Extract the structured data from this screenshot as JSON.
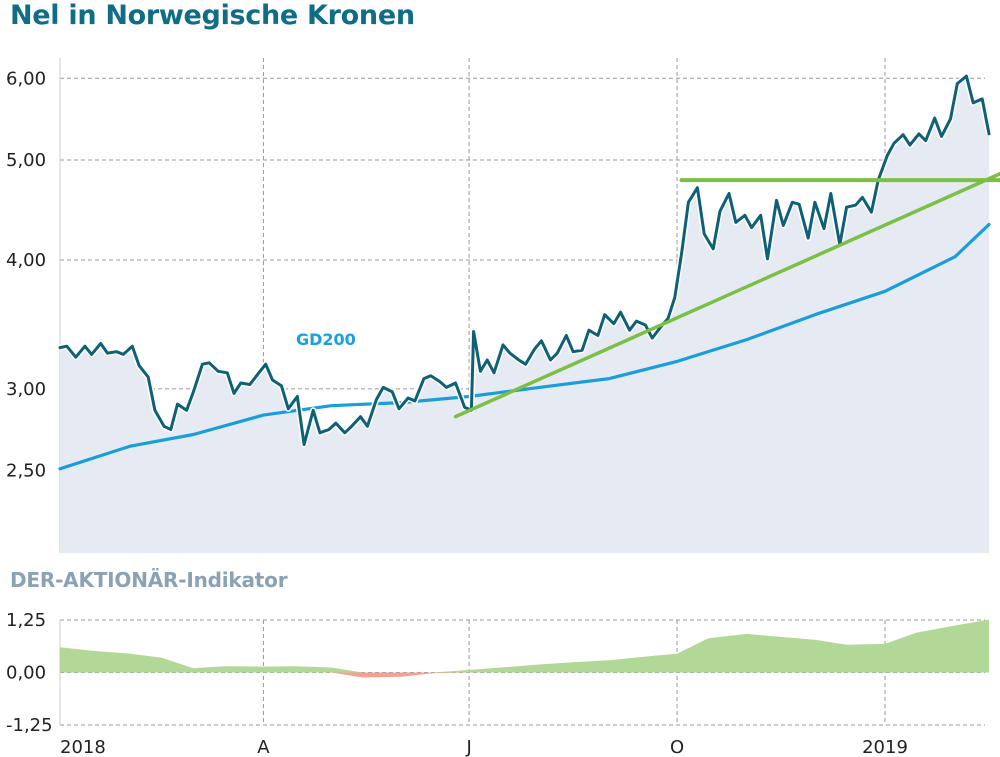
{
  "title": "Nel in Norwegische Kronen",
  "subtitle": "DER-AKTIONÄR-Indikator",
  "colors": {
    "title": "#0f6d86",
    "price_line": "#0e6077",
    "price_fill": "#e6ebf3",
    "gd200": "#1a9edb",
    "trend": "#7bbf45",
    "indicator_positive": "#b2d897",
    "indicator_negative": "#f3a095",
    "grid": "#999999"
  },
  "chart_data": [
    {
      "type": "line",
      "title": "Nel in Norwegische Kronen",
      "y_scale": "log",
      "ylim": [
        2.05,
        6.1
      ],
      "y_ticks": [
        {
          "value": 2.5,
          "label": "2,50"
        },
        {
          "value": 3.0,
          "label": "3,00"
        },
        {
          "value": 4.0,
          "label": "4,00"
        },
        {
          "value": 5.0,
          "label": "5,00"
        },
        {
          "value": 6.0,
          "label": "6,00"
        }
      ],
      "x_ticks": [
        {
          "date": "2018-01-01",
          "label": "2018"
        },
        {
          "date": "2018-04-01",
          "label": "A"
        },
        {
          "date": "2018-07-01",
          "label": "J"
        },
        {
          "date": "2018-10-01",
          "label": "O"
        },
        {
          "date": "2019-01-01",
          "label": "2019"
        }
      ],
      "grid": true,
      "series": [
        {
          "kind": "price",
          "points": [
            [
              "2018-01-01",
              3.29
            ],
            [
              "2018-01-04",
              3.3
            ],
            [
              "2018-01-08",
              3.22
            ],
            [
              "2018-01-12",
              3.3
            ],
            [
              "2018-01-15",
              3.24
            ],
            [
              "2018-01-19",
              3.32
            ],
            [
              "2018-01-22",
              3.25
            ],
            [
              "2018-01-26",
              3.26
            ],
            [
              "2018-01-29",
              3.24
            ],
            [
              "2018-02-02",
              3.3
            ],
            [
              "2018-02-05",
              3.16
            ],
            [
              "2018-02-09",
              3.08
            ],
            [
              "2018-02-12",
              2.86
            ],
            [
              "2018-02-16",
              2.76
            ],
            [
              "2018-02-19",
              2.74
            ],
            [
              "2018-02-22",
              2.9
            ],
            [
              "2018-02-26",
              2.86
            ],
            [
              "2018-03-01",
              2.98
            ],
            [
              "2018-03-05",
              3.17
            ],
            [
              "2018-03-08",
              3.18
            ],
            [
              "2018-03-12",
              3.12
            ],
            [
              "2018-03-16",
              3.11
            ],
            [
              "2018-03-19",
              2.97
            ],
            [
              "2018-03-22",
              3.04
            ],
            [
              "2018-03-26",
              3.03
            ],
            [
              "2018-03-29",
              3.09
            ],
            [
              "2018-04-02",
              3.17
            ],
            [
              "2018-04-05",
              3.06
            ],
            [
              "2018-04-09",
              3.02
            ],
            [
              "2018-04-12",
              2.87
            ],
            [
              "2018-04-16",
              2.95
            ],
            [
              "2018-04-19",
              2.65
            ],
            [
              "2018-04-23",
              2.86
            ],
            [
              "2018-04-26",
              2.72
            ],
            [
              "2018-04-30",
              2.74
            ],
            [
              "2018-05-03",
              2.78
            ],
            [
              "2018-05-07",
              2.72
            ],
            [
              "2018-05-10",
              2.76
            ],
            [
              "2018-05-14",
              2.82
            ],
            [
              "2018-05-17",
              2.76
            ],
            [
              "2018-05-21",
              2.93
            ],
            [
              "2018-05-24",
              3.01
            ],
            [
              "2018-05-28",
              2.98
            ],
            [
              "2018-05-31",
              2.87
            ],
            [
              "2018-06-04",
              2.94
            ],
            [
              "2018-06-07",
              2.92
            ],
            [
              "2018-06-11",
              3.07
            ],
            [
              "2018-06-14",
              3.09
            ],
            [
              "2018-06-18",
              3.05
            ],
            [
              "2018-06-21",
              3.01
            ],
            [
              "2018-06-25",
              3.04
            ],
            [
              "2018-06-28",
              2.92
            ],
            [
              "2018-06-29",
              2.88
            ],
            [
              "2018-07-02",
              2.86
            ],
            [
              "2018-07-03",
              3.41
            ],
            [
              "2018-07-06",
              3.12
            ],
            [
              "2018-07-09",
              3.2
            ],
            [
              "2018-07-12",
              3.11
            ],
            [
              "2018-07-16",
              3.31
            ],
            [
              "2018-07-19",
              3.25
            ],
            [
              "2018-07-23",
              3.2
            ],
            [
              "2018-07-26",
              3.17
            ],
            [
              "2018-07-30",
              3.28
            ],
            [
              "2018-08-02",
              3.34
            ],
            [
              "2018-08-06",
              3.2
            ],
            [
              "2018-08-09",
              3.25
            ],
            [
              "2018-08-13",
              3.38
            ],
            [
              "2018-08-16",
              3.26
            ],
            [
              "2018-08-20",
              3.27
            ],
            [
              "2018-08-23",
              3.42
            ],
            [
              "2018-08-27",
              3.38
            ],
            [
              "2018-08-30",
              3.54
            ],
            [
              "2018-09-03",
              3.47
            ],
            [
              "2018-09-06",
              3.56
            ],
            [
              "2018-09-10",
              3.42
            ],
            [
              "2018-09-13",
              3.49
            ],
            [
              "2018-09-17",
              3.46
            ],
            [
              "2018-09-20",
              3.36
            ],
            [
              "2018-09-24",
              3.45
            ],
            [
              "2018-09-27",
              3.51
            ],
            [
              "2018-09-30",
              3.68
            ],
            [
              "2018-10-03",
              4.06
            ],
            [
              "2018-10-06",
              4.55
            ],
            [
              "2018-10-10",
              4.7
            ],
            [
              "2018-10-13",
              4.24
            ],
            [
              "2018-10-17",
              4.1
            ],
            [
              "2018-10-20",
              4.46
            ],
            [
              "2018-10-24",
              4.64
            ],
            [
              "2018-10-27",
              4.35
            ],
            [
              "2018-10-31",
              4.42
            ],
            [
              "2018-11-03",
              4.3
            ],
            [
              "2018-11-07",
              4.42
            ],
            [
              "2018-11-10",
              4.01
            ],
            [
              "2018-11-14",
              4.57
            ],
            [
              "2018-11-17",
              4.32
            ],
            [
              "2018-11-21",
              4.55
            ],
            [
              "2018-11-24",
              4.53
            ],
            [
              "2018-11-28",
              4.2
            ],
            [
              "2018-12-01",
              4.55
            ],
            [
              "2018-12-05",
              4.29
            ],
            [
              "2018-12-08",
              4.64
            ],
            [
              "2018-12-12",
              4.14
            ],
            [
              "2018-12-15",
              4.5
            ],
            [
              "2018-12-19",
              4.52
            ],
            [
              "2018-12-22",
              4.6
            ],
            [
              "2018-12-26",
              4.45
            ],
            [
              "2018-12-29",
              4.78
            ],
            [
              "2019-01-02",
              5.05
            ],
            [
              "2019-01-05",
              5.19
            ],
            [
              "2019-01-09",
              5.29
            ],
            [
              "2019-01-12",
              5.17
            ],
            [
              "2019-01-16",
              5.3
            ],
            [
              "2019-01-19",
              5.22
            ],
            [
              "2019-01-23",
              5.49
            ],
            [
              "2019-01-26",
              5.27
            ],
            [
              "2019-01-30",
              5.48
            ],
            [
              "2019-02-02",
              5.93
            ],
            [
              "2019-02-06",
              6.03
            ],
            [
              "2019-02-09",
              5.68
            ],
            [
              "2019-02-13",
              5.73
            ],
            [
              "2019-02-16",
              5.3
            ]
          ]
        },
        {
          "kind": "moving-average",
          "name": "GD200",
          "points": [
            [
              "2018-01-01",
              2.51
            ],
            [
              "2018-02-01",
              2.64
            ],
            [
              "2018-03-01",
              2.71
            ],
            [
              "2018-04-01",
              2.83
            ],
            [
              "2018-05-01",
              2.89
            ],
            [
              "2018-06-01",
              2.91
            ],
            [
              "2018-07-01",
              2.95
            ],
            [
              "2018-08-01",
              3.01
            ],
            [
              "2018-09-01",
              3.07
            ],
            [
              "2018-10-01",
              3.19
            ],
            [
              "2018-11-01",
              3.35
            ],
            [
              "2018-12-01",
              3.54
            ],
            [
              "2019-01-01",
              3.73
            ],
            [
              "2019-02-01",
              4.03
            ],
            [
              "2019-02-16",
              4.33
            ]
          ]
        },
        {
          "kind": "trendline",
          "points": [
            [
              "2018-06-25",
              2.82
            ],
            [
              "2019-02-21",
              4.85
            ]
          ]
        },
        {
          "kind": "horizontal-line",
          "points": [
            [
              "2018-10-03",
              4.78
            ],
            [
              "2019-02-21",
              4.78
            ]
          ]
        }
      ]
    },
    {
      "type": "area",
      "title": "DER-AKTIONÄR-Indikator",
      "ylim": [
        -1.25,
        1.25
      ],
      "y_ticks": [
        {
          "value": 1.25,
          "label": "1,25"
        },
        {
          "value": 0.0,
          "label": "0,00"
        },
        {
          "value": -1.25,
          "label": "-1,25"
        }
      ],
      "x_ticks": [
        {
          "date": "2018-01-01",
          "label": "2018"
        },
        {
          "date": "2018-04-01",
          "label": "A"
        },
        {
          "date": "2018-07-01",
          "label": "J"
        },
        {
          "date": "2018-10-01",
          "label": "O"
        },
        {
          "date": "2019-01-01",
          "label": "2019"
        }
      ],
      "grid": true,
      "points": [
        [
          "2018-01-01",
          0.6
        ],
        [
          "2018-01-15",
          0.52
        ],
        [
          "2018-02-01",
          0.45
        ],
        [
          "2018-02-15",
          0.35
        ],
        [
          "2018-03-01",
          0.1
        ],
        [
          "2018-03-15",
          0.15
        ],
        [
          "2018-04-01",
          0.14
        ],
        [
          "2018-04-15",
          0.15
        ],
        [
          "2018-05-01",
          0.12
        ],
        [
          "2018-05-15",
          -0.12
        ],
        [
          "2018-06-01",
          -0.1
        ],
        [
          "2018-06-15",
          -0.02
        ],
        [
          "2018-07-01",
          0.06
        ],
        [
          "2018-07-15",
          0.12
        ],
        [
          "2018-08-01",
          0.19
        ],
        [
          "2018-08-15",
          0.24
        ],
        [
          "2018-09-01",
          0.29
        ],
        [
          "2018-09-15",
          0.37
        ],
        [
          "2018-10-01",
          0.45
        ],
        [
          "2018-10-15",
          0.82
        ],
        [
          "2018-11-01",
          0.92
        ],
        [
          "2018-11-15",
          0.85
        ],
        [
          "2018-12-01",
          0.78
        ],
        [
          "2018-12-15",
          0.66
        ],
        [
          "2019-01-01",
          0.68
        ],
        [
          "2019-01-15",
          0.95
        ],
        [
          "2019-02-01",
          1.12
        ],
        [
          "2019-02-16",
          1.26
        ]
      ]
    }
  ],
  "gd200_label": "GD200"
}
